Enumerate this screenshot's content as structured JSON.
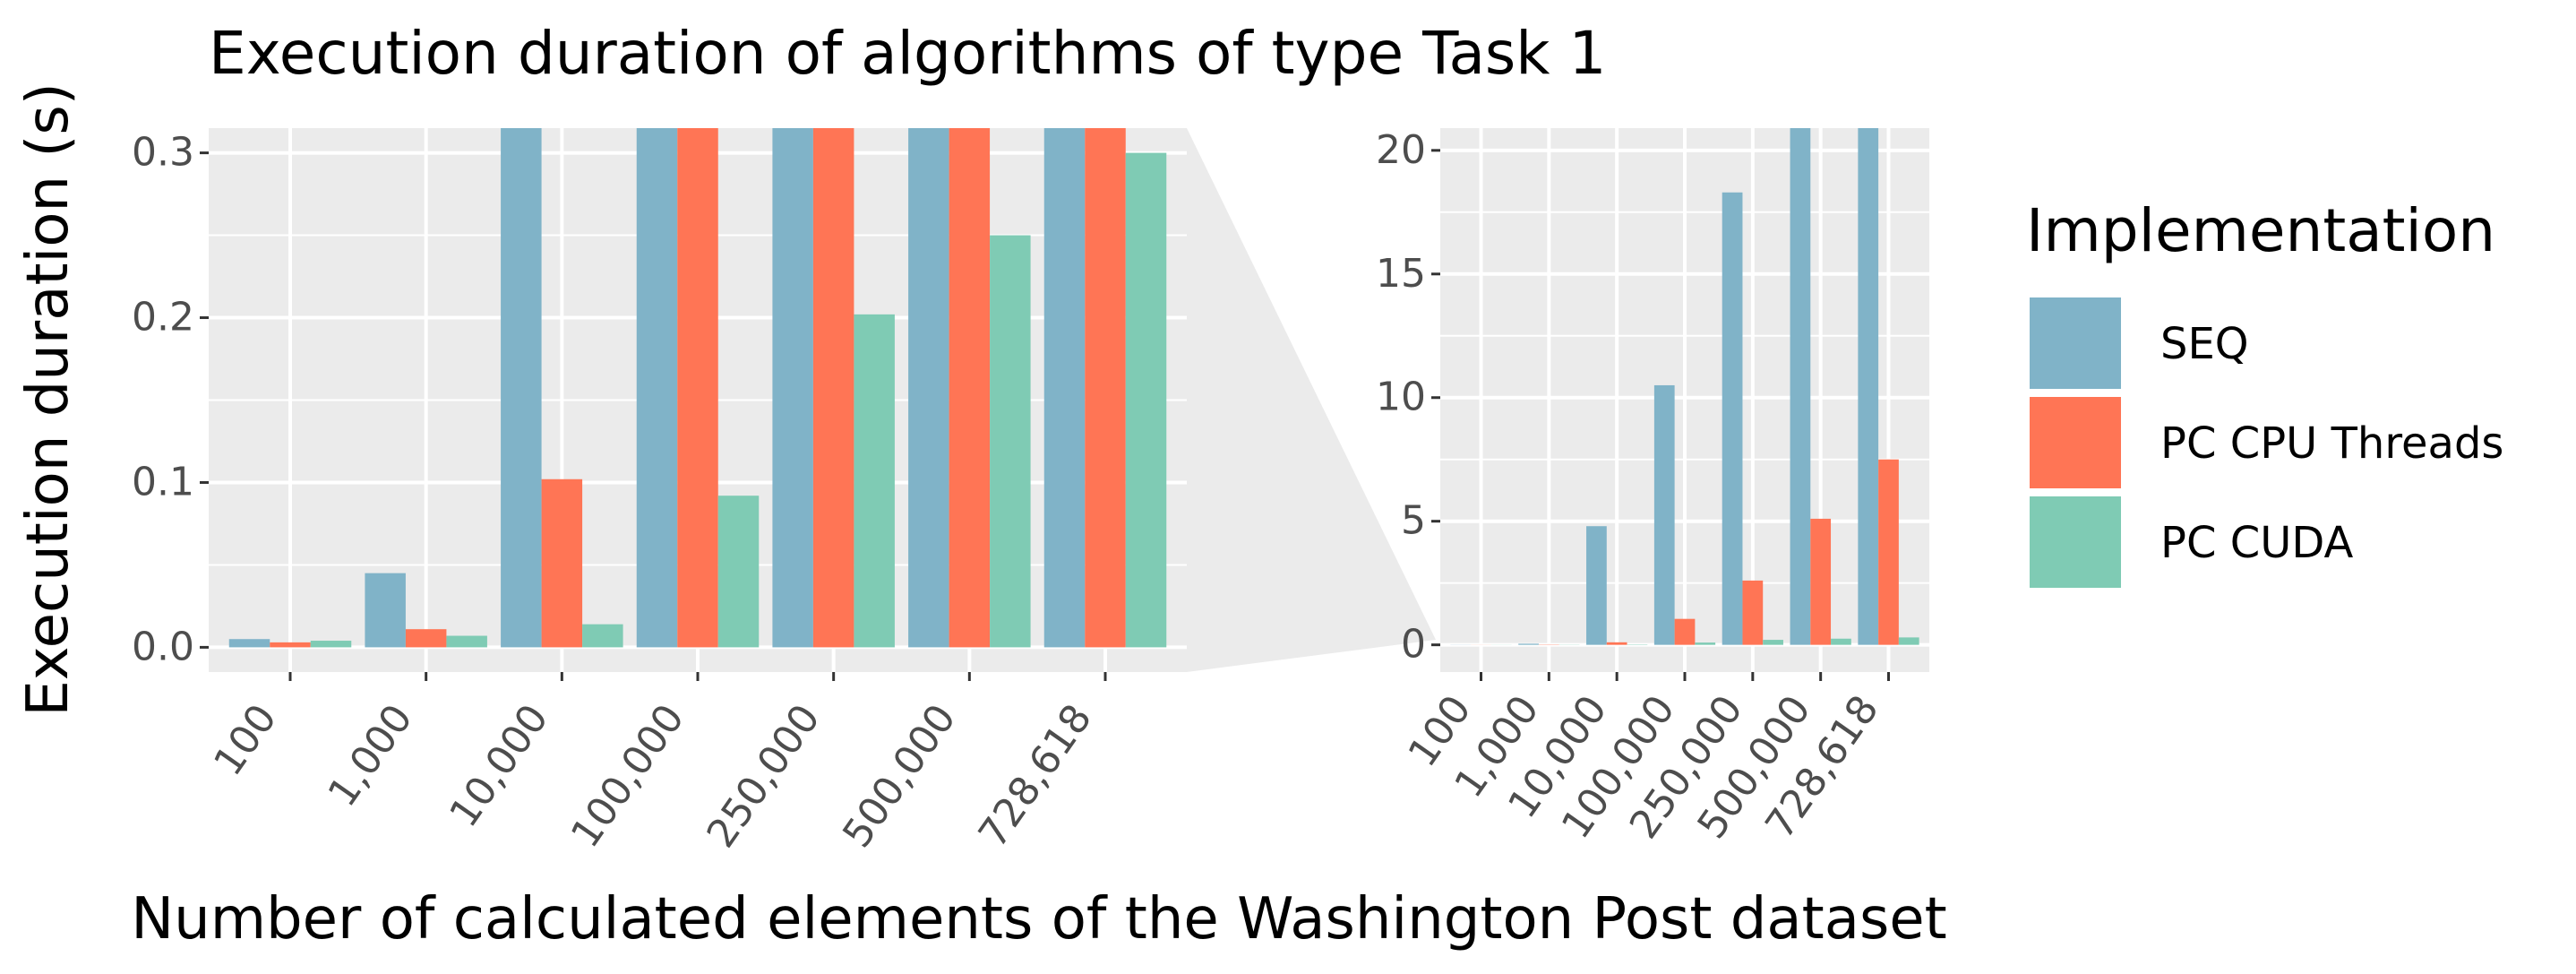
{
  "chart_data": {
    "type": "bar",
    "title": "Execution duration of algorithms of type Task 1",
    "xlabel": "Number of calculated elements of the Washington Post dataset",
    "ylabel": "Execution duration (s)",
    "categories": [
      "100",
      "1,000",
      "10,000",
      "100,000",
      "250,000",
      "500,000",
      "728,618"
    ],
    "series": [
      {
        "name": "SEQ",
        "color": "#80b3c8",
        "values": [
          0.005,
          0.045,
          4.8,
          10.5,
          18.3,
          22.2,
          25.0
        ]
      },
      {
        "name": "PC CPU Threads",
        "color": "#ff7555",
        "values": [
          0.003,
          0.011,
          0.102,
          1.05,
          2.6,
          5.1,
          7.5
        ]
      },
      {
        "name": "PC CUDA",
        "color": "#7fcbb4",
        "values": [
          0.004,
          0.007,
          0.014,
          0.092,
          0.202,
          0.25,
          0.3
        ]
      }
    ],
    "panels": [
      {
        "name": "zoom",
        "ylim": [
          -0.015,
          0.315
        ],
        "yticks": [
          0.0,
          0.1,
          0.2,
          0.3
        ],
        "ytick_labels": [
          "0.0",
          "0.1",
          "0.2",
          "0.3"
        ]
      },
      {
        "name": "full",
        "ylim": [
          -1.1,
          20.9
        ],
        "yticks": [
          0,
          5,
          10,
          15,
          20
        ],
        "ytick_labels": [
          "0",
          "5",
          "10",
          "15",
          "20"
        ]
      }
    ],
    "legend": {
      "title": "Implementation",
      "position": "right"
    },
    "grid": true
  }
}
